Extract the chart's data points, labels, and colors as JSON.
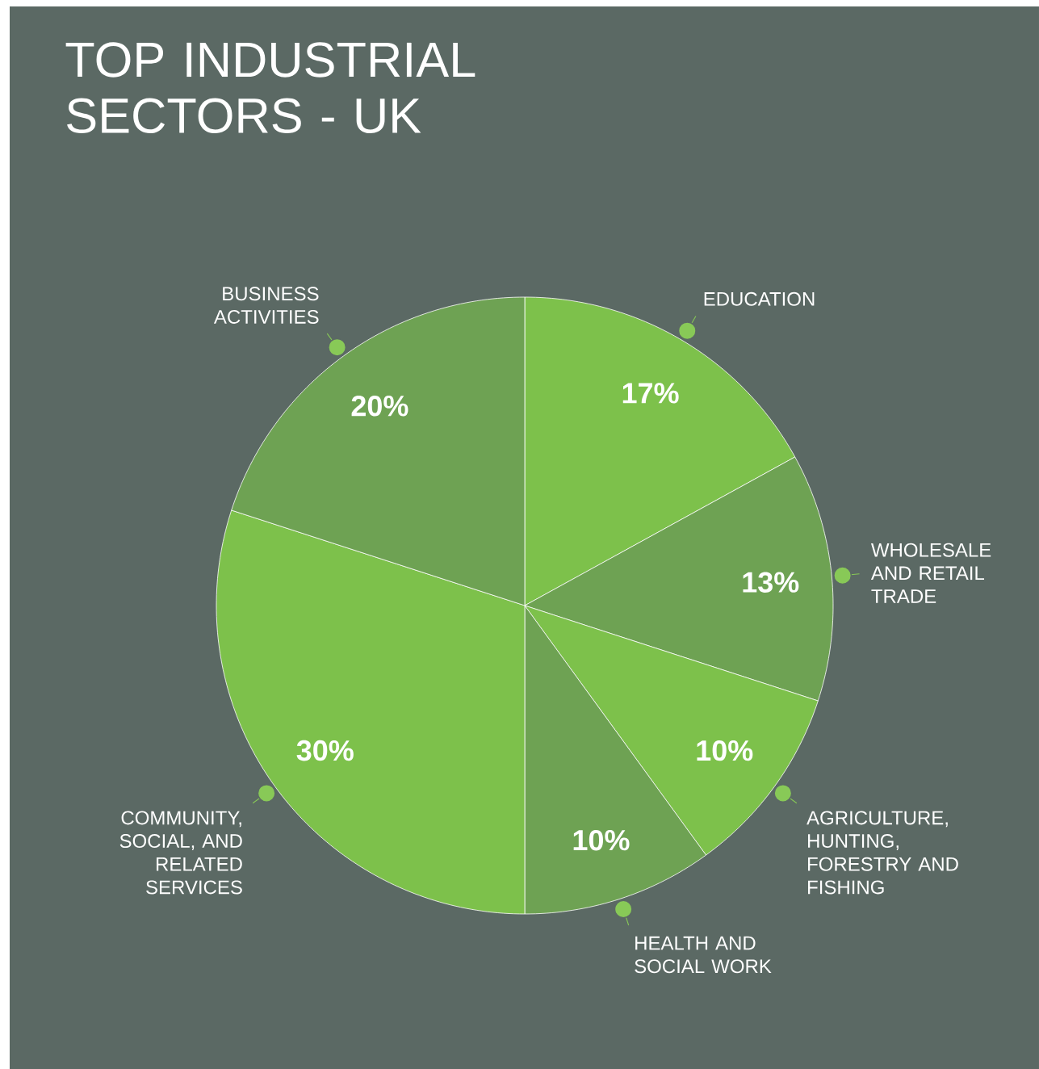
{
  "chart_data": {
    "type": "pie",
    "title": "TOP INDUSTRIAL SECTORS - UK",
    "categories": [
      "EDUCATION",
      "WHOLESALE AND RETAIL TRADE",
      "AGRICULTURE, HUNTING, FORESTRY AND FISHING",
      "HEALTH AND SOCIAL WORK",
      "COMMUNITY, SOCIAL, AND RELATED SERVICES",
      "BUSINESS ACTIVITIES"
    ],
    "values": [
      17,
      13,
      10,
      10,
      30,
      20
    ],
    "value_labels": [
      "17%",
      "13%",
      "10%",
      "10%",
      "30%",
      "20%"
    ],
    "colors": [
      "#7dc14b",
      "#6ea253",
      "#7dc14b",
      "#6ea253",
      "#7dc14b",
      "#6ea253"
    ]
  }
}
